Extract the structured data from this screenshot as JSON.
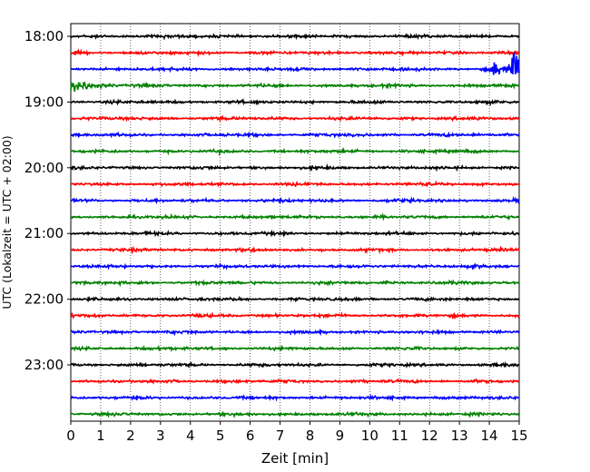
{
  "chart_data": {
    "type": "line",
    "title": "",
    "xlabel": "Zeit  [min]",
    "ylabel": "UTC (Lokalzeit = UTC + 02:00)",
    "xlim": [
      0,
      15
    ],
    "x_ticks": [
      "0",
      "1",
      "2",
      "3",
      "4",
      "5",
      "6",
      "7",
      "8",
      "9",
      "10",
      "11",
      "12",
      "13",
      "14",
      "15"
    ],
    "y_ticks": [
      "18:00",
      "19:00",
      "20:00",
      "21:00",
      "22:00",
      "23:00"
    ],
    "trace_interval_minutes": 15,
    "first_trace": "18:00",
    "trace_count": 24,
    "color_cycle": [
      "#000000",
      "#ff0000",
      "#0000ff",
      "#008000"
    ],
    "grid": "vertical dotted lines at each minute",
    "events": [
      {
        "trace": "18:30",
        "x_start": 14.0,
        "x_end": 15.0,
        "amplitude": "very large"
      },
      {
        "trace": "18:45",
        "x_start": 0.0,
        "x_end": 1.6,
        "amplitude": "large, decaying"
      }
    ]
  }
}
